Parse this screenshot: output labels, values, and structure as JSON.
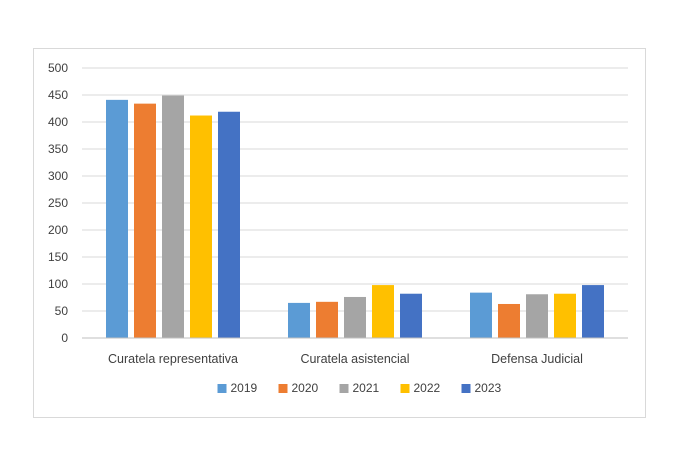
{
  "chart_data": {
    "type": "bar",
    "title": "",
    "xlabel": "",
    "ylabel": "",
    "categories": [
      "Curatela representativa",
      "Curatela asistencial",
      "Defensa Judicial"
    ],
    "series": [
      {
        "name": "2019",
        "color": "#5b9bd5",
        "values": [
          441,
          65,
          84
        ]
      },
      {
        "name": "2020",
        "color": "#ed7d31",
        "values": [
          434,
          67,
          63
        ]
      },
      {
        "name": "2021",
        "color": "#a5a5a5",
        "values": [
          449,
          76,
          81
        ]
      },
      {
        "name": "2022",
        "color": "#ffc000",
        "values": [
          412,
          98,
          82
        ]
      },
      {
        "name": "2023",
        "color": "#4472c4",
        "values": [
          419,
          82,
          98
        ]
      }
    ],
    "ylim": [
      0,
      500
    ],
    "yticks": [
      "0",
      "50",
      "100",
      "150",
      "200",
      "250",
      "300",
      "350",
      "400",
      "450",
      "500"
    ],
    "grid": true,
    "legend_position": "bottom"
  }
}
